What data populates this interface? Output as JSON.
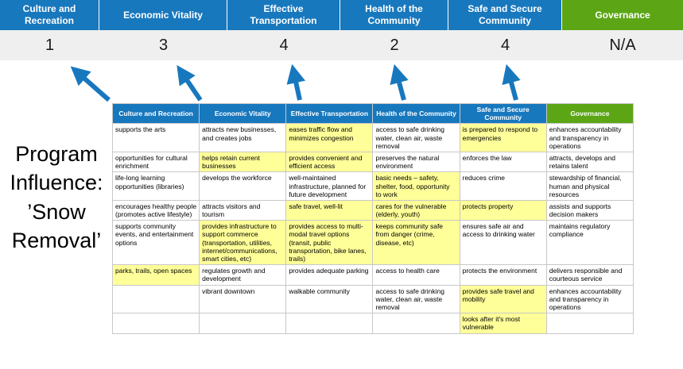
{
  "program_label": "Program Influence: ’Snow Removal’",
  "colors": {
    "blue": "#1878BE",
    "green": "#5CA616",
    "highlight": "#FFFF99",
    "score_band_background": "#EFEFEF"
  },
  "scoreboard": {
    "columns": [
      {
        "label": "Culture and Recreation",
        "score": "1",
        "color": "blue"
      },
      {
        "label": "Economic Vitality",
        "score": "3",
        "color": "blue"
      },
      {
        "label": "Effective Transportation",
        "score": "4",
        "color": "blue"
      },
      {
        "label": "Health of the Community",
        "score": "2",
        "color": "blue"
      },
      {
        "label": "Safe and Secure Community",
        "score": "4",
        "color": "blue"
      },
      {
        "label": "Governance",
        "score": "N/A",
        "color": "green"
      }
    ]
  },
  "matrix": {
    "headers": [
      {
        "label": "Culture and Recreation",
        "color": "blue"
      },
      {
        "label": "Economic Vitality",
        "color": "blue"
      },
      {
        "label": "Effective Transportation",
        "color": "blue"
      },
      {
        "label": "Health of the Community",
        "color": "blue"
      },
      {
        "label": "Safe and Secure Community",
        "color": "blue"
      },
      {
        "label": "Governance",
        "color": "green"
      }
    ],
    "rows": [
      [
        {
          "text": "supports the arts",
          "highlight": false
        },
        {
          "text": "attracts new businesses, and creates jobs",
          "highlight": false
        },
        {
          "text": "eases traffic flow and minimizes congestion",
          "highlight": true
        },
        {
          "text": "access to safe drinking water, clean air, waste removal",
          "highlight": false
        },
        {
          "text": "is prepared to respond to emergencies",
          "highlight": true
        },
        {
          "text": "enhances accountability and transparency in operations",
          "highlight": false
        }
      ],
      [
        {
          "text": "opportunities for cultural enrichment",
          "highlight": false
        },
        {
          "text": "helps retain current businesses",
          "highlight": true
        },
        {
          "text": "provides convenient and efficient access",
          "highlight": true
        },
        {
          "text": "preserves the natural environment",
          "highlight": false
        },
        {
          "text": "enforces the law",
          "highlight": false
        },
        {
          "text": "attracts, develops and retains talent",
          "highlight": false
        }
      ],
      [
        {
          "text": "life-long learning opportunities (libraries)",
          "highlight": false
        },
        {
          "text": "develops the workforce",
          "highlight": false
        },
        {
          "text": "well-maintained infrastructure, planned for future development",
          "highlight": false
        },
        {
          "text": "basic needs – safety, shelter, food, opportunity to work",
          "highlight": true
        },
        {
          "text": "reduces crime",
          "highlight": false
        },
        {
          "text": "stewardship of financial, human and physical resources",
          "highlight": false
        }
      ],
      [
        {
          "text": "encourages healthy people (promotes active lifestyle)",
          "highlight": false
        },
        {
          "text": "attracts visitors and tourism",
          "highlight": false
        },
        {
          "text": "safe travel, well-lit",
          "highlight": true
        },
        {
          "text": "cares for the vulnerable (elderly, youth)",
          "highlight": true
        },
        {
          "text": "protects property",
          "highlight": true
        },
        {
          "text": "assists and supports decision makers",
          "highlight": false
        }
      ],
      [
        {
          "text": "supports community events, and entertainment options",
          "highlight": false
        },
        {
          "text": "provides infrastructure to support commerce (transportation, utilities, internet/communications, smart cities, etc)",
          "highlight": true
        },
        {
          "text": "provides access to multi-modal travel options (transit, public transportation, bike lanes, trails)",
          "highlight": true
        },
        {
          "text": "keeps community safe from danger (crime, disease, etc)",
          "highlight": true
        },
        {
          "text": "ensures safe air and access to drinking water",
          "highlight": false
        },
        {
          "text": "maintains regulatory compliance",
          "highlight": false
        }
      ],
      [
        {
          "text": "parks, trails, open spaces",
          "highlight": true
        },
        {
          "text": "regulates growth and development",
          "highlight": false
        },
        {
          "text": "provides adequate parking",
          "highlight": false
        },
        {
          "text": "access to health care",
          "highlight": false
        },
        {
          "text": "protects the environment",
          "highlight": false
        },
        {
          "text": "delivers responsible and courteous service",
          "highlight": false
        }
      ],
      [
        {
          "text": "",
          "highlight": false
        },
        {
          "text": "vibrant downtown",
          "highlight": false
        },
        {
          "text": "walkable community",
          "highlight": false
        },
        {
          "text": "access to safe drinking water, clean air, waste removal",
          "highlight": false
        },
        {
          "text": "provides safe travel and mobility",
          "highlight": true
        },
        {
          "text": "enhances accountability and transparency in operations",
          "highlight": false
        }
      ],
      [
        {
          "text": "",
          "highlight": false
        },
        {
          "text": "",
          "highlight": false
        },
        {
          "text": "",
          "highlight": false
        },
        {
          "text": "",
          "highlight": false
        },
        {
          "text": "looks after it's most vulnerable",
          "highlight": true
        },
        {
          "text": "",
          "highlight": false
        }
      ]
    ]
  }
}
